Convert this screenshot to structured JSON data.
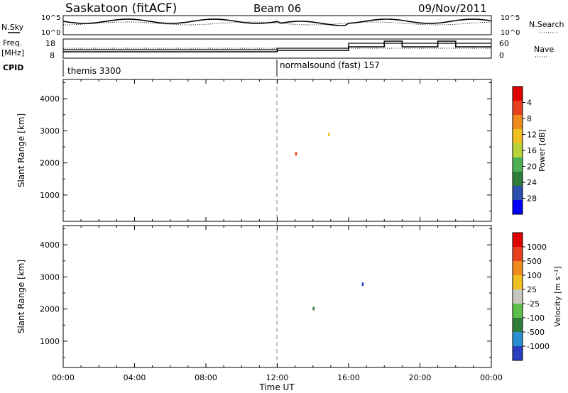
{
  "header": {
    "station": "Saskatoon (fitACF)",
    "beam": "Beam 06",
    "date": "09/Nov/2011"
  },
  "summary_panels": {
    "nsky_label": "N.Sky",
    "nsky_ticks": [
      "10^5",
      "10^0"
    ],
    "nsearch_label": "N.Search",
    "nsearch_ticks": [
      "10^5",
      "10^0"
    ],
    "freq_label_1": "Freq.",
    "freq_label_2": "[MHz]",
    "freq_ticks": [
      "18",
      "8"
    ],
    "nave_label": "Nave",
    "nave_ticks": [
      "60",
      "0"
    ],
    "cpid_label": "CPID",
    "cpid_1": "themis 3300",
    "cpid_2": "normalsound (fast) 157"
  },
  "time_axis": {
    "label": "Time UT",
    "ticks": [
      "00:00",
      "04:00",
      "08:00",
      "12:00",
      "16:00",
      "20:00",
      "00:00"
    ]
  },
  "chart_data": [
    {
      "type": "heatmap",
      "ylabel": "Slant Range [km]",
      "yticks": [
        "1000",
        "2000",
        "3000",
        "4000"
      ],
      "ylim": [
        180,
        4600
      ],
      "colorbar_label": "Power [dB]",
      "colorbar_ticks": [
        "4",
        "8",
        "12",
        "16",
        "20",
        "24",
        "28"
      ],
      "colors": [
        "#0000ff",
        "#2a4fb0",
        "#2f7d3a",
        "#4caf50",
        "#b8d23a",
        "#f0c020",
        "#f08a1e",
        "#e8401e",
        "#e00000"
      ]
    },
    {
      "type": "heatmap",
      "ylabel": "Slant Range [km]",
      "yticks": [
        "1000",
        "2000",
        "3000",
        "4000"
      ],
      "ylim": [
        180,
        4600
      ],
      "colorbar_label": "Velocity [m s⁻¹]",
      "colorbar_ticks": [
        "1000",
        "500",
        "100",
        "25",
        "-25",
        "-100",
        "-500",
        "-1000"
      ],
      "colors": [
        "#2a3fbf",
        "#2a8fd0",
        "#2f7d3a",
        "#5cc04a",
        "#c8c8c0",
        "#f0c020",
        "#f08a1e",
        "#e8401e",
        "#e00000"
      ]
    }
  ]
}
